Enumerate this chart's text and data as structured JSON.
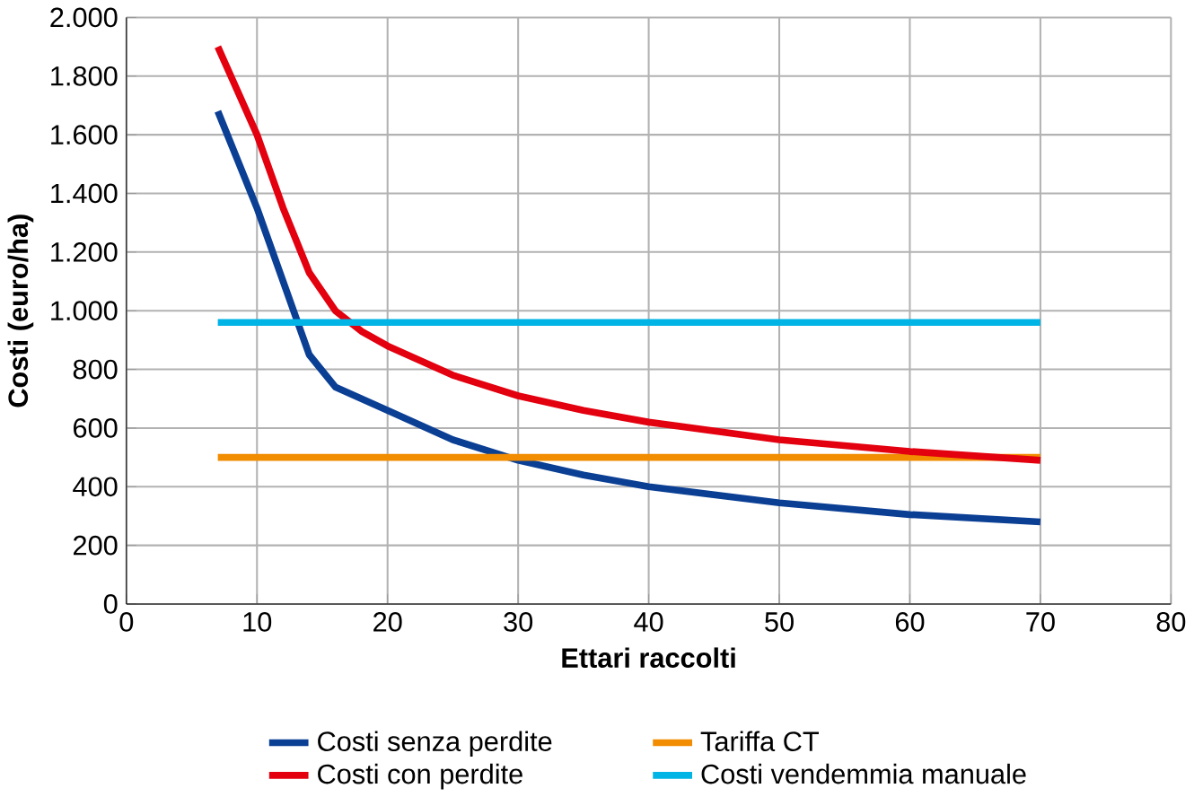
{
  "chart_data": {
    "type": "line",
    "xlabel": "Ettari raccolti",
    "ylabel": "Costi (euro/ha)",
    "xlim": [
      0,
      80
    ],
    "xticks": [
      0,
      10,
      20,
      30,
      40,
      50,
      60,
      70,
      80
    ],
    "ylim": [
      0,
      2000
    ],
    "yticks": [
      0,
      200,
      400,
      600,
      800,
      {
        "value": 1000,
        "label": "1.000"
      },
      {
        "value": 1200,
        "label": "1.200"
      },
      {
        "value": 1400,
        "label": "1.400"
      },
      {
        "value": 1600,
        "label": "1.600"
      },
      {
        "value": 1800,
        "label": "1.800"
      },
      {
        "value": 2000,
        "label": "2.000"
      }
    ],
    "grid": true,
    "legend": "bottom",
    "marker": "none",
    "line_style": "solid",
    "series": [
      {
        "name": "Costi senza perdite",
        "color": "#0b3f94",
        "x": [
          7,
          10,
          12,
          14,
          16,
          18,
          20,
          25,
          30,
          35,
          40,
          50,
          60,
          70
        ],
        "values": [
          1680,
          1350,
          1100,
          850,
          740,
          700,
          660,
          560,
          490,
          440,
          400,
          345,
          305,
          280
        ]
      },
      {
        "name": "Tariffa CT",
        "color": "#f28c00",
        "x": [
          7,
          70
        ],
        "values": [
          500,
          500
        ]
      },
      {
        "name": "Costi con perdite",
        "color": "#e3000f",
        "x": [
          7,
          10,
          12,
          14,
          16,
          18,
          20,
          25,
          30,
          35,
          40,
          50,
          60,
          70
        ],
        "values": [
          1900,
          1600,
          1350,
          1130,
          1000,
          930,
          880,
          780,
          710,
          660,
          620,
          560,
          520,
          490
        ]
      },
      {
        "name": "Costi vendemmia manuale",
        "color": "#00b4e6",
        "x": [
          7,
          70
        ],
        "values": [
          960,
          960
        ]
      }
    ]
  }
}
